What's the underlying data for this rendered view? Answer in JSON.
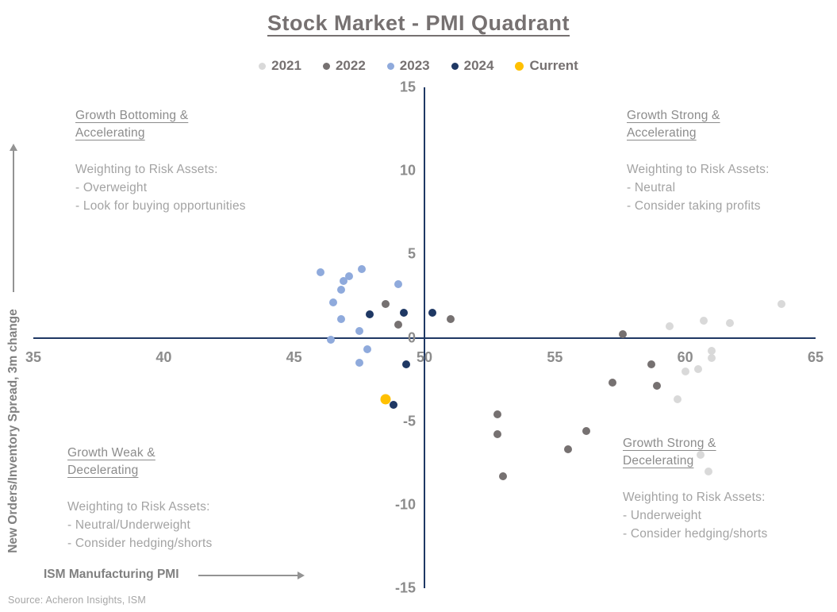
{
  "title": "Stock Market - PMI Quadrant",
  "source": "Source: Acheron Insights, ISM",
  "axes": {
    "x_label": "ISM Manufacturing PMI",
    "y_label": "New Orders/Inventory Spread, 3m change",
    "x_ticks": [
      35,
      40,
      45,
      50,
      55,
      60,
      65
    ],
    "y_ticks": [
      15,
      10,
      5,
      0,
      -5,
      -10,
      -15
    ]
  },
  "quadrants": {
    "top_left": {
      "heading": "Growth Bottoming & Accelerating",
      "lines": [
        "Weighting to Risk Assets:",
        "- Overweight",
        "- Look for buying opportunities"
      ]
    },
    "top_right": {
      "heading": "Growth Strong & Accelerating",
      "lines": [
        "Weighting to Risk Assets:",
        "- Neutral",
        "- Consider taking profits"
      ]
    },
    "bottom_left": {
      "heading": "Growth Weak & Decelerating",
      "lines": [
        "Weighting to Risk Assets:",
        "- Neutral/Underweight",
        "- Consider hedging/shorts"
      ]
    },
    "bottom_right": {
      "heading": "Growth Strong & Decelerating",
      "lines": [
        "Weighting to Risk Assets:",
        "- Underweight",
        "- Consider hedging/shorts"
      ]
    }
  },
  "chart_data": {
    "type": "scatter",
    "title": "Stock Market - PMI Quadrant",
    "xlabel": "ISM Manufacturing PMI",
    "ylabel": "New Orders/Inventory Spread, 3m change",
    "xlim": [
      35,
      65
    ],
    "ylim": [
      -15,
      15
    ],
    "x_axis_cross": 50,
    "y_axis_cross": 0,
    "grid": false,
    "legend_position": "top",
    "axis_color": "#1f3864",
    "series": [
      {
        "name": "2021",
        "color": "#d9d9d9",
        "marker_size": 10,
        "points": [
          [
            63.7,
            2.0
          ],
          [
            60.7,
            1.0
          ],
          [
            61.7,
            0.9
          ],
          [
            59.4,
            0.7
          ],
          [
            61.0,
            -0.8
          ],
          [
            61.0,
            -1.2
          ],
          [
            60.5,
            -1.9
          ],
          [
            60.0,
            -2.0
          ],
          [
            59.7,
            -3.7
          ],
          [
            60.6,
            -7.0
          ],
          [
            60.9,
            -8.0
          ]
        ]
      },
      {
        "name": "2022",
        "color": "#767171",
        "marker_size": 10,
        "points": [
          [
            48.5,
            2.0
          ],
          [
            49.0,
            0.8
          ],
          [
            51.0,
            1.1
          ],
          [
            57.6,
            0.2
          ],
          [
            58.7,
            -1.6
          ],
          [
            57.2,
            -2.7
          ],
          [
            58.9,
            -2.9
          ],
          [
            52.8,
            -4.6
          ],
          [
            52.8,
            -5.8
          ],
          [
            56.2,
            -5.6
          ],
          [
            55.5,
            -6.7
          ],
          [
            53.0,
            -8.3
          ]
        ]
      },
      {
        "name": "2023",
        "color": "#8faadc",
        "marker_size": 10,
        "points": [
          [
            46.0,
            3.9
          ],
          [
            47.6,
            4.1
          ],
          [
            47.1,
            3.7
          ],
          [
            46.9,
            3.4
          ],
          [
            46.8,
            2.9
          ],
          [
            49.0,
            3.2
          ],
          [
            46.5,
            2.1
          ],
          [
            46.8,
            1.1
          ],
          [
            47.5,
            0.4
          ],
          [
            46.4,
            -0.1
          ],
          [
            47.8,
            -0.7
          ],
          [
            47.5,
            -1.5
          ]
        ]
      },
      {
        "name": "2024",
        "color": "#1f3864",
        "marker_size": 10,
        "points": [
          [
            47.9,
            1.4
          ],
          [
            49.2,
            1.5
          ],
          [
            50.3,
            1.5
          ],
          [
            49.3,
            -1.6
          ],
          [
            48.8,
            -4.0
          ]
        ]
      },
      {
        "name": "Current",
        "color": "#ffc000",
        "marker_size": 13,
        "points": [
          [
            48.5,
            -3.7
          ]
        ]
      }
    ]
  }
}
